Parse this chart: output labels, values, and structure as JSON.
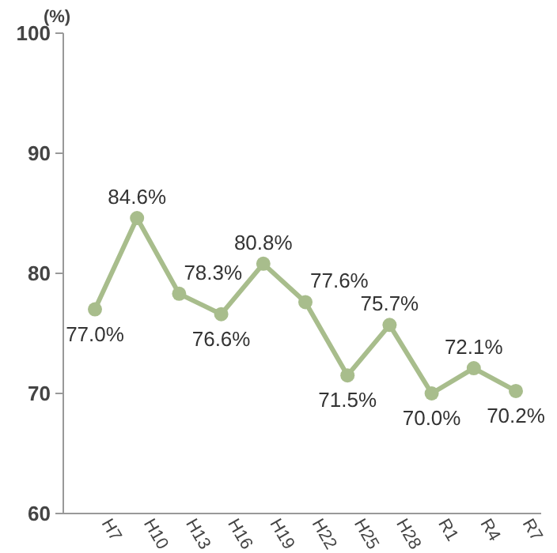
{
  "chart_data": {
    "type": "line",
    "ylabel": "(%)",
    "categories": [
      "H7",
      "H10",
      "H13",
      "H16",
      "H19",
      "H22",
      "H25",
      "H28",
      "R1",
      "R4",
      "R7"
    ],
    "series": [
      {
        "color": "#a8bd8c",
        "values": [
          77.0,
          84.6,
          78.3,
          76.6,
          80.8,
          77.6,
          71.5,
          75.7,
          70.0,
          72.1,
          70.2
        ],
        "value_labels": [
          "77.0%",
          "84.6%",
          "78.3%",
          "76.6%",
          "80.8%",
          "77.6%",
          "71.5%",
          "75.7%",
          "70.0%",
          "72.1%",
          "70.2%"
        ]
      }
    ],
    "ylim": [
      60,
      100
    ],
    "yticks": [
      60,
      70,
      80,
      90,
      100
    ],
    "grid": false,
    "marker": "circle",
    "line_style": "solid"
  }
}
